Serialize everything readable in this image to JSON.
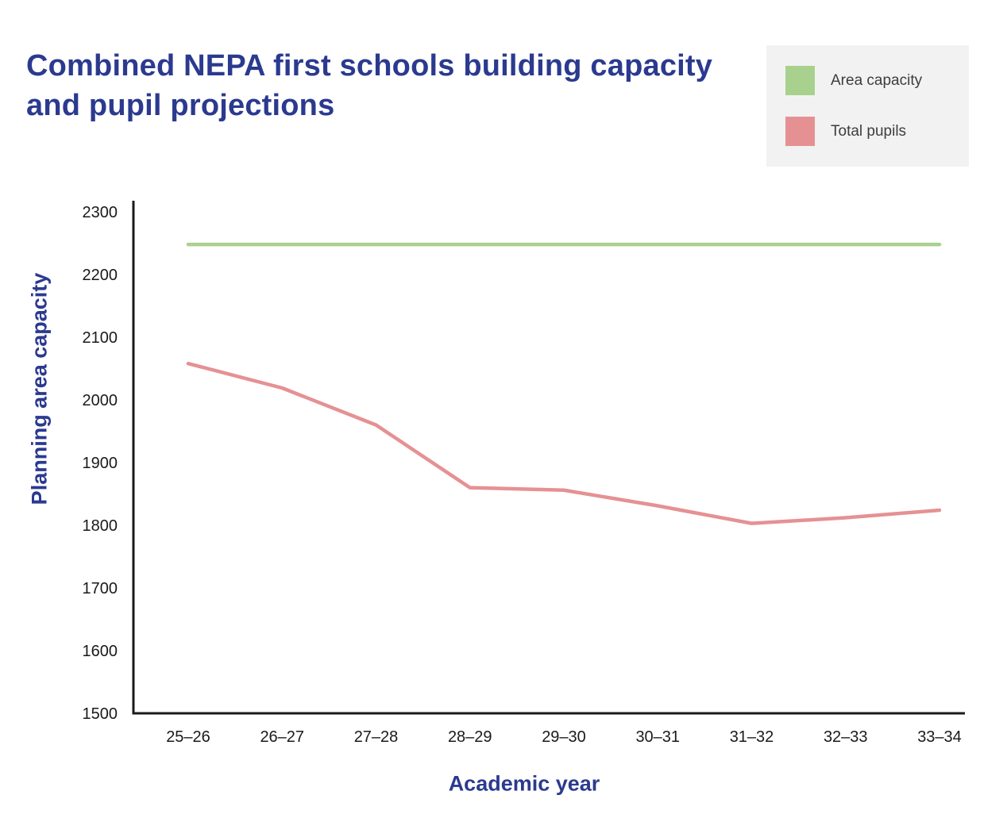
{
  "colors": {
    "title_blue": "#2b3a8f",
    "area_capacity_green": "#a9d18e",
    "total_pupils_pink": "#e59193",
    "legend_background": "#f2f2f2",
    "axis_black": "#1a1a1a"
  },
  "legend": {
    "items": [
      {
        "label": "Area capacity",
        "color": "#a9d18e"
      },
      {
        "label": "Total pupils",
        "color": "#e59193"
      }
    ]
  },
  "chart_data": {
    "type": "line",
    "title": "Combined NEPA first schools building capacity and pupil projections",
    "xlabel": "Academic year",
    "ylabel": "Planning area capacity",
    "categories": [
      "25–26",
      "26–27",
      "27–28",
      "28–29",
      "29–30",
      "30–31",
      "31–32",
      "32–33",
      "33–34"
    ],
    "series": [
      {
        "name": "Area capacity",
        "color": "#a9d18e",
        "values": [
          2248,
          2248,
          2248,
          2248,
          2248,
          2248,
          2248,
          2248,
          2248
        ]
      },
      {
        "name": "Total pupils",
        "color": "#e59193",
        "values": [
          2058,
          2019,
          1960,
          1860,
          1856,
          1831,
          1803,
          1812,
          1824
        ]
      }
    ],
    "ylim": [
      1500,
      2300
    ],
    "ytick_step": 100,
    "grid": false,
    "legend_position": "top-right"
  }
}
